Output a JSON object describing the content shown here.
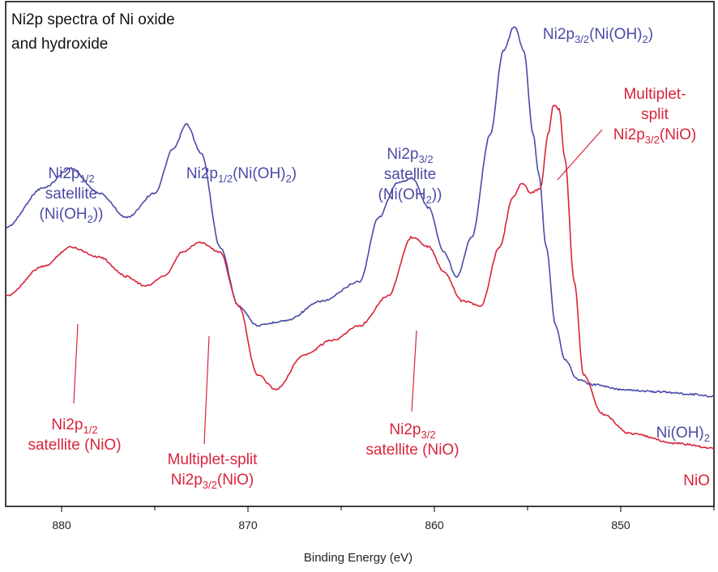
{
  "chart_data": {
    "type": "line",
    "title": "Ni2p spectra of Ni oxide and hydroxide",
    "xlabel": "Binding Energy (eV)",
    "ylabel": "",
    "xlim": [
      883,
      845
    ],
    "ylim": [
      0,
      100
    ],
    "x_ticks": [
      880,
      870,
      860,
      850
    ],
    "x_tick_labels": [
      "880",
      "870",
      "860",
      "850"
    ],
    "series": [
      {
        "name": "Ni(OH)2",
        "color": "#4a4aa8",
        "x": [
          883,
          881,
          879.5,
          878,
          876.5,
          875,
          874,
          873.3,
          872.5,
          871.5,
          870.5,
          869.5,
          868,
          866,
          864,
          863,
          862,
          861.2,
          860.3,
          859.5,
          858.8,
          858,
          857,
          856.3,
          855.7,
          855.2,
          854.7,
          854.4,
          854,
          853.5,
          853,
          852.3,
          851.5,
          850,
          848,
          846,
          845
        ],
        "values": [
          56,
          64,
          68,
          63,
          58,
          63,
          72,
          77,
          71,
          52,
          40,
          36,
          37,
          41,
          45,
          58,
          65,
          66,
          60,
          51,
          46,
          54,
          75,
          92,
          97,
          92,
          75,
          67,
          52,
          36,
          29,
          25,
          24,
          23,
          22.5,
          22,
          21.5
        ]
      },
      {
        "name": "NiO",
        "color": "#d8243a",
        "x": [
          883,
          881,
          879.5,
          878,
          876.5,
          875.5,
          874.5,
          873.5,
          872.6,
          871.5,
          870.5,
          869.5,
          868.5,
          867,
          865.5,
          864,
          862.5,
          861.2,
          860.3,
          859.5,
          858.5,
          857.5,
          856.5,
          855.8,
          855.3,
          854.8,
          854.3,
          853.9,
          853.6,
          853.3,
          853,
          852.5,
          852,
          851,
          849.5,
          847,
          845
        ],
        "values": [
          42,
          48,
          52,
          50,
          46,
          44,
          46,
          51,
          53,
          51,
          40,
          26,
          23,
          30,
          33,
          36,
          42,
          54,
          52,
          47,
          41,
          40,
          52,
          62,
          65,
          63,
          64,
          75,
          81,
          80,
          70,
          45,
          26,
          18,
          14,
          12,
          11
        ]
      }
    ],
    "annotations": [
      {
        "id": "blue-sat-12",
        "color": "blue",
        "lines": [
          "Ni2p<sub>1/2</sub>",
          "satellite",
          "(Ni(OH<sub>2</sub>))"
        ]
      },
      {
        "id": "blue-main-12",
        "color": "blue",
        "lines": [
          "Ni2p<sub>1/2</sub>(Ni(OH)<sub>2</sub>)"
        ]
      },
      {
        "id": "blue-sat-32",
        "color": "blue",
        "lines": [
          "Ni2p<sub>3/2</sub>",
          "satellite",
          "(Ni(OH<sub>2</sub>))"
        ]
      },
      {
        "id": "blue-main-32",
        "color": "blue",
        "lines": [
          "Ni2p<sub>3/2</sub>(Ni(OH)<sub>2</sub>)"
        ]
      },
      {
        "id": "red-mult-top",
        "color": "red",
        "lines": [
          "Multiplet-",
          "split",
          "Ni2p<sub>3/2</sub>(NiO)"
        ]
      },
      {
        "id": "red-sat-12",
        "color": "red",
        "lines": [
          "Ni2p<sub>1/2</sub>",
          "satellite (NiO)"
        ]
      },
      {
        "id": "red-mult-mid",
        "color": "red",
        "lines": [
          "Multiplet-split",
          "Ni2p<sub>3/2</sub>(NiO)"
        ]
      },
      {
        "id": "red-sat-32",
        "color": "red",
        "lines": [
          "Ni2p<sub>3/2</sub>",
          "satellite (NiO)"
        ]
      },
      {
        "id": "label-nioh2",
        "color": "blue",
        "lines": [
          "Ni(OH)<sub>2</sub>"
        ]
      },
      {
        "id": "label-nio",
        "color": "red",
        "lines": [
          "NiO"
        ]
      }
    ]
  }
}
